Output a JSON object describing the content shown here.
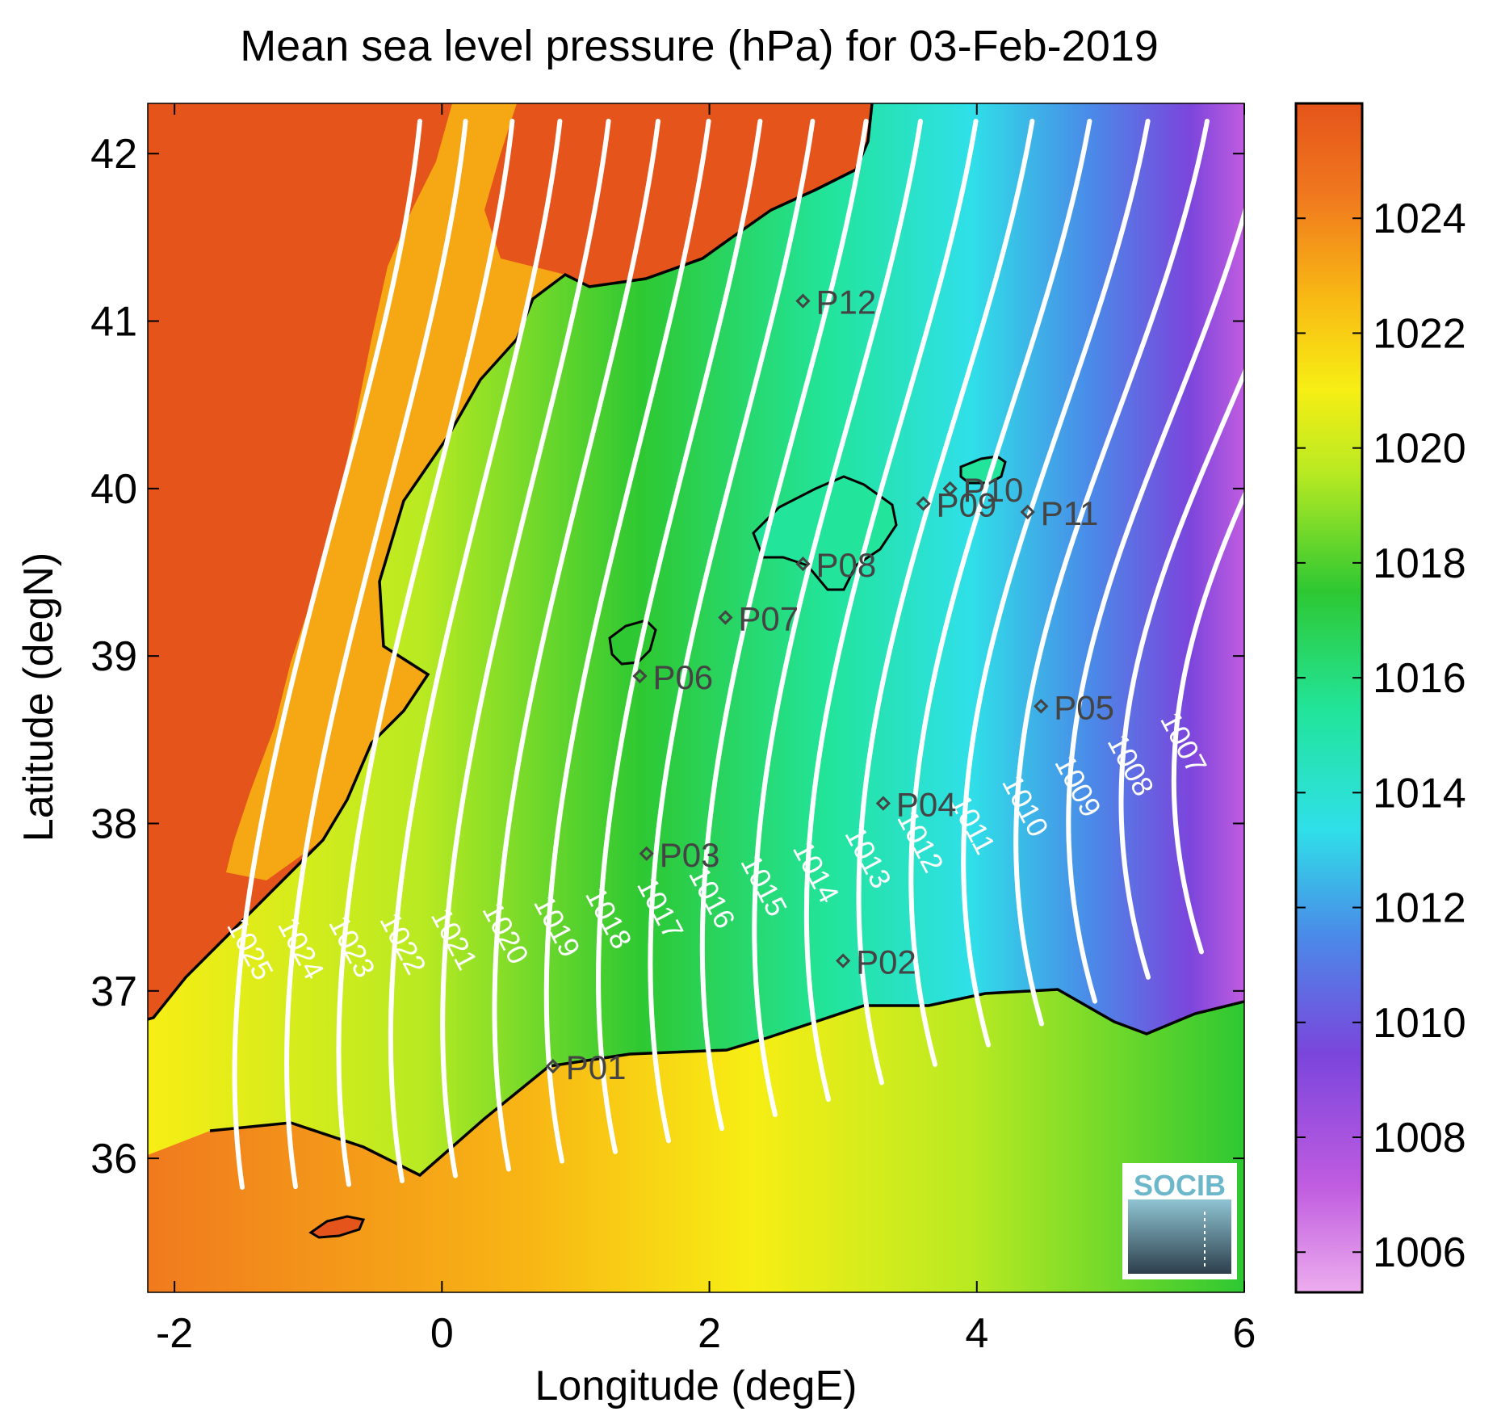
{
  "title": "Mean sea level pressure (hPa) for 03-Feb-2019",
  "xlabel": "Longitude (degE)",
  "ylabel": "Latitude (degN)",
  "map": {
    "lon_range": [
      -2.2,
      6.0
    ],
    "lat_range": [
      35.2,
      42.3
    ],
    "x_ticks": [
      -2,
      0,
      2,
      4,
      6
    ],
    "y_ticks": [
      36,
      37,
      38,
      39,
      40,
      41,
      42
    ],
    "x_tick_labels": [
      "-2",
      "0",
      "2",
      "4",
      "6"
    ],
    "y_tick_labels": [
      "36",
      "37",
      "38",
      "39",
      "40",
      "41",
      "42"
    ]
  },
  "colorbar": {
    "range": [
      1005.3,
      1026.0
    ],
    "ticks": [
      1006,
      1008,
      1010,
      1012,
      1014,
      1016,
      1018,
      1020,
      1022,
      1024
    ],
    "tick_labels": [
      "1006",
      "1008",
      "1010",
      "1012",
      "1014",
      "1016",
      "1018",
      "1020",
      "1022",
      "1024"
    ],
    "colors": [
      "#ecadee",
      "#c05ce0",
      "#7b45dc",
      "#4a8ae8",
      "#2fe0e8",
      "#22e49a",
      "#2ec832",
      "#b9ea22",
      "#f7ee14",
      "#f8b614",
      "#f07a1e",
      "#e5541a"
    ]
  },
  "contour_labels": [
    "1007",
    "1008",
    "1009",
    "1010",
    "1011",
    "1012",
    "1013",
    "1014",
    "1015",
    "1016",
    "1017",
    "1018",
    "1019",
    "1020",
    "1021",
    "1022",
    "1023",
    "1024",
    "1025"
  ],
  "stations": [
    {
      "name": "P01",
      "lon": 0.83,
      "lat": 36.55
    },
    {
      "name": "P02",
      "lon": 3.0,
      "lat": 37.18
    },
    {
      "name": "P03",
      "lon": 1.53,
      "lat": 37.82
    },
    {
      "name": "P04",
      "lon": 3.3,
      "lat": 38.12
    },
    {
      "name": "P05",
      "lon": 4.48,
      "lat": 38.7
    },
    {
      "name": "P06",
      "lon": 1.48,
      "lat": 38.88
    },
    {
      "name": "P07",
      "lon": 2.12,
      "lat": 39.23
    },
    {
      "name": "P08",
      "lon": 2.7,
      "lat": 39.55
    },
    {
      "name": "P09",
      "lon": 3.6,
      "lat": 39.91
    },
    {
      "name": "P10",
      "lon": 3.8,
      "lat": 40.0
    },
    {
      "name": "P11",
      "lon": 4.38,
      "lat": 39.86
    },
    {
      "name": "P12",
      "lon": 2.7,
      "lat": 41.12
    }
  ],
  "logo": {
    "text": "SOCIB"
  }
}
